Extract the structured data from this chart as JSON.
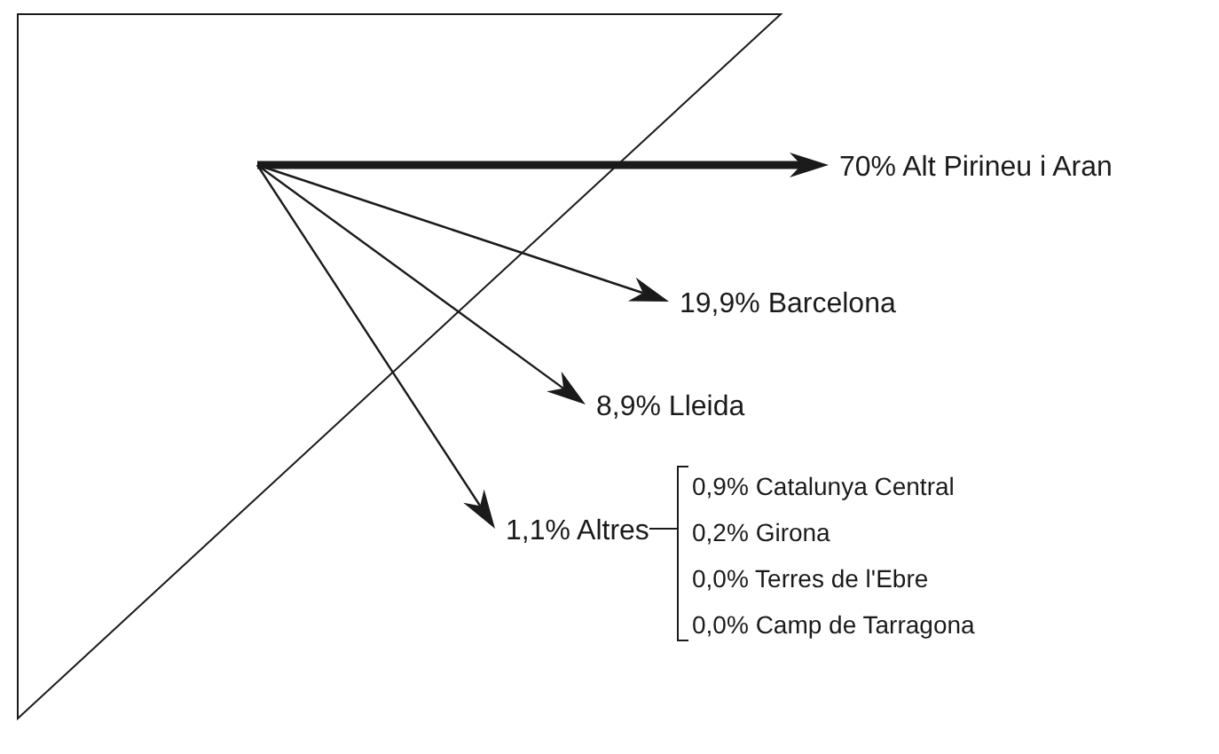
{
  "chart_data": [
    {
      "type": "other",
      "categories": [
        "Alt Pirineu i Aran",
        "Barcelona",
        "Lleida",
        "Altres"
      ],
      "values": [
        70,
        19.9,
        8.9,
        1.1
      ],
      "value_labels": [
        "70%",
        "19,9%",
        "8,9%",
        "1,1%"
      ],
      "color": "#1a1a1a"
    },
    {
      "type": "other",
      "categories": [
        "Catalunya Central",
        "Girona",
        "Terres de l'Ebre",
        "Camp de Tarragona"
      ],
      "values": [
        0.9,
        0.2,
        0.0,
        0.0
      ],
      "value_labels": [
        "0,9%",
        "0,2%",
        "0,0%",
        "0,0%"
      ],
      "color": "#1a1a1a"
    }
  ]
}
